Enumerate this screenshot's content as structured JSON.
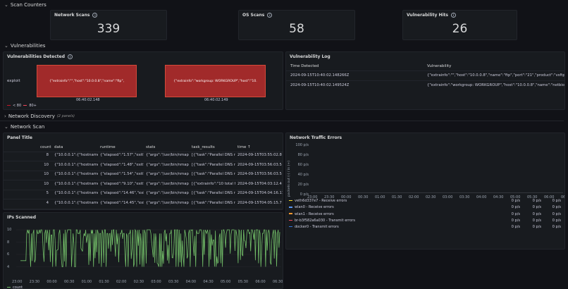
{
  "rows": {
    "scan_counters": "Scan Counters",
    "vulnerabilities": "Vulnerabilities",
    "network_discovery": "Network Discovery",
    "network_discovery_count": "(2 panels)",
    "network_scan": "Network Scan"
  },
  "stats": [
    {
      "title": "Network Scans",
      "value": "339"
    },
    {
      "title": "OS Scans",
      "value": "58"
    },
    {
      "title": "Vulnerability Hits",
      "value": "26"
    }
  ],
  "vuln_detected": {
    "title": "Vulnerabilities Detected",
    "row_label": "exploit",
    "cells": [
      {
        "text": "{\"extrainfo\":\"\",\"host\":\"10.0.0.8\",\"name\":\"ftp\",",
        "time": "06:40:02.148"
      },
      {
        "text": "{\"extrainfo\":\"workgroup: WORKGROUP\",\"host\":\"10.",
        "time": "06:40:02.149"
      }
    ],
    "legend": [
      {
        "label": "< 80",
        "color": "#c4162a"
      },
      {
        "label": "80+",
        "color": "#f2495c"
      }
    ]
  },
  "vuln_log": {
    "title": "Vulnerability Log",
    "headers": [
      "Time Detected",
      "Vulnerability"
    ],
    "rows": [
      [
        "2024-09-15T10:40:02.148266Z",
        "{\"extrainfo\":\"\",\"host\":\"10.0.0.8\",\"name\":\"ftp\",\"port\":\"21\",\"product\":\"vsftpd\","
      ],
      [
        "2024-09-15T10:40:02.149524Z",
        "{\"extrainfo\":\"workgroup: WORKGROUP\",\"host\":\"10.0.0.8\",\"name\":\"netbios-s"
      ]
    ]
  },
  "panel_title": {
    "title": "Panel Title",
    "headers": [
      "count",
      "data",
      "runtime",
      "stats",
      "task_results",
      "time ↑"
    ],
    "rows": [
      [
        "8",
        "{\"10.0.0.1\":{\"hostname\":[",
        "{\"elapsed\":\"1.57\",\"exit\":\"",
        "{\"args\":\"/usr/bin/nmap -",
        "[{\"task\":\"Parallel DNS re",
        "2024-09-15T03:55:02.8"
      ],
      [
        "10",
        "{\"10.0.0.1\":{\"hostname\":[",
        "{\"elapsed\":\"1.48\",\"exit\":\"",
        "{\"args\":\"/usr/bin/nmap -",
        "[{\"task\":\"Parallel DNS re",
        "2024-09-15T03:56:03.5"
      ],
      [
        "10",
        "{\"10.0.0.1\":{\"hostname\":[",
        "{\"elapsed\":\"1.54\",\"exit\":\"",
        "{\"args\":\"/usr/bin/nmap -",
        "[{\"task\":\"Parallel DNS re",
        "2024-09-15T03:56:03.5"
      ],
      [
        "10",
        "{\"10.0.0.1\":{\"hostname\":[",
        "{\"elapsed\":\"9.10\",\"exit\":\"",
        "{\"args\":\"/usr/bin/nmap -",
        "[{\"extrainfo\":\"10 total ho",
        "2024-09-15T04:03:12.4"
      ],
      [
        "5",
        "{\"10.0.0.1\":{\"hostname\":[",
        "{\"elapsed\":\"14.46\",\"exit\"",
        "{\"args\":\"/usr/bin/nmap -",
        "[{\"task\":\"Parallel DNS re",
        "2024-09-15T04:04:16.11"
      ],
      [
        "4",
        "{\"10.0.0.1\":{\"hostname\":[",
        "{\"elapsed\":\"14.45\",\"exit\"",
        "{\"args\":\"/usr/bin/nmap -",
        "[{\"task\":\"Parallel DNS re",
        "2024-09-15T04:05:15.7"
      ]
    ]
  },
  "traffic": {
    "title": "Network Traffic Errors",
    "ylabel": "packets out (-) / in (+)",
    "yticks": [
      "100 p/s",
      "80 p/s",
      "60 p/s",
      "40 p/s",
      "20 p/s",
      "0 p/s"
    ],
    "xticks": [
      "23:00",
      "23:30",
      "00:00",
      "00:30",
      "01:00",
      "01:30",
      "02:00",
      "02:30",
      "03:00",
      "03:30",
      "04:00",
      "04:30",
      "05:00",
      "05:30",
      "06:00",
      "06:30"
    ],
    "legend": [
      {
        "label": "veth6d337e7 - Receive errors",
        "color": "#fade2a",
        "v1": "0 p/s",
        "v2": "0 p/s",
        "v3": "0 p/s"
      },
      {
        "label": "wlan0 - Receive errors",
        "color": "#5794f2",
        "v1": "0 p/s",
        "v2": "0 p/s",
        "v3": "0 p/s"
      },
      {
        "label": "wlan1 - Receive errors",
        "color": "#ff9830",
        "v1": "0 p/s",
        "v2": "0 p/s",
        "v3": "0 p/s"
      },
      {
        "label": "br-b3f582a6a030 - Transmit errors",
        "color": "#f2495c",
        "v1": "0 p/s",
        "v2": "0 p/s",
        "v3": "0 p/s"
      },
      {
        "label": "docker0 - Transmit errors",
        "color": "#3274d9",
        "v1": "0 p/s",
        "v2": "0 p/s",
        "v3": "0 p/s"
      }
    ]
  },
  "ips": {
    "title": "IPs Scanned",
    "legend": "count",
    "color": "#73bf69",
    "yticks": [
      "10",
      "8",
      "6",
      "4"
    ],
    "xticks": [
      "23:00",
      "23:30",
      "00:00",
      "00:30",
      "01:00",
      "01:30",
      "02:00",
      "02:30",
      "03:00",
      "03:30",
      "04:00",
      "04:30",
      "05:00",
      "05:30",
      "06:00",
      "06:30"
    ]
  },
  "chart_data": {
    "type": "line",
    "title": "IPs Scanned",
    "x": [
      "23:00",
      "23:30",
      "00:00",
      "00:30",
      "01:00",
      "01:30",
      "02:00",
      "02:30",
      "03:00",
      "03:30",
      "04:00",
      "04:30",
      "05:00",
      "05:30",
      "06:00",
      "06:30"
    ],
    "series": [
      {
        "name": "count",
        "values": [
          5,
          8,
          10,
          4,
          10,
          6,
          9,
          4,
          10,
          5,
          9,
          4,
          10,
          5,
          9,
          10
        ]
      }
    ],
    "ylim": [
      4,
      10
    ]
  }
}
